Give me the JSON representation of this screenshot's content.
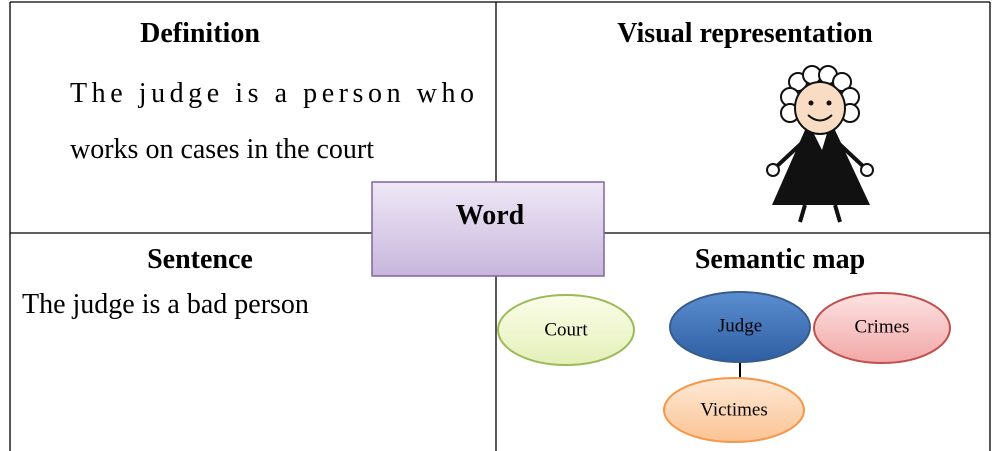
{
  "center": {
    "label": "Word"
  },
  "quadrants": [
    {
      "title": "Definition",
      "lines": [
        "The judge is a person who",
        "works on cases in the court"
      ]
    },
    {
      "title": "Visual representation"
    },
    {
      "title": "Sentence",
      "lines": [
        "The judge is a bad person"
      ]
    },
    {
      "title": "Semantic map"
    }
  ],
  "semantic_map": {
    "nodes": [
      {
        "label": "Court"
      },
      {
        "label": "Judge"
      },
      {
        "label": "Crimes"
      },
      {
        "label": "Victimes"
      }
    ]
  }
}
